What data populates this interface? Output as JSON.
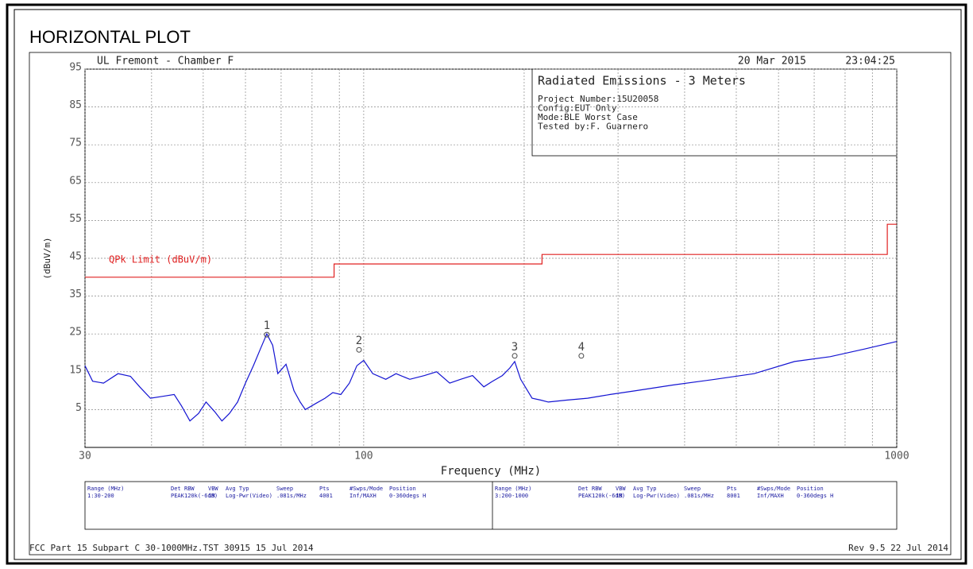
{
  "chart_data": {
    "type": "line",
    "title": "HORIZONTAL PLOT",
    "header_left": "UL Fremont - Chamber F",
    "date": "20 Mar 2015",
    "time": "23:04:25",
    "info_box": {
      "title": "Radiated Emissions - 3 Meters",
      "lines": [
        "Project Number:15U20058",
        "Config:EUT Only",
        "Mode:BLE Worst Case",
        "Tested by:F. Guarnero"
      ]
    },
    "xlabel": "Frequency (MHz)",
    "ylabel": "(dBuV/m)",
    "xscale": "log",
    "xlim": [
      30,
      1000
    ],
    "xticks": [
      30,
      100,
      1000
    ],
    "xgrid": [
      40,
      50,
      60,
      70,
      80,
      90,
      200,
      300,
      400,
      500,
      600,
      700,
      800,
      900
    ],
    "ylim": [
      -5,
      95
    ],
    "yticks": [
      5,
      15,
      25,
      35,
      45,
      55,
      65,
      75,
      85,
      95
    ],
    "grid": true,
    "series": [
      {
        "name": "QPk Limit (dBuV/m)",
        "color": "#e02020",
        "x": [
          30,
          88,
          88,
          216,
          216,
          960,
          960,
          1000
        ],
        "values": [
          40,
          40,
          43.5,
          43.5,
          46,
          46,
          54,
          54
        ]
      },
      {
        "color": "#1414d2",
        "x": [
          30,
          31,
          32.5,
          34.6,
          36.5,
          38,
          39.8,
          42,
          44.1,
          45.5,
          47.2,
          49,
          50.6,
          52.5,
          54.2,
          56,
          58,
          60,
          62.1,
          64,
          65.8,
          67.5,
          69,
          71.5,
          74,
          76,
          77.7,
          81,
          84.6,
          87.5,
          90.6,
          94,
          97.1,
          100,
          104,
          110,
          115,
          122,
          130,
          137,
          145,
          152,
          160,
          168,
          174,
          182,
          188,
          192,
          197,
          207,
          215,
          222,
          240,
          263,
          290,
          324,
          380,
          456,
          540,
          643,
          750,
          870,
          1000
        ],
        "values": [
          16.6,
          12.5,
          12,
          14.5,
          13.8,
          11,
          8,
          8.5,
          9,
          6,
          2,
          4,
          7,
          4.5,
          2,
          4,
          7,
          12,
          16.6,
          21,
          25,
          22,
          14.5,
          17,
          10,
          7,
          5,
          6.5,
          8,
          9.5,
          9,
          12,
          16.6,
          18,
          14.5,
          13,
          14.5,
          13,
          14,
          15,
          12,
          13,
          14,
          11,
          12.4,
          14,
          16,
          17.7,
          13,
          8,
          7.5,
          7,
          7.5,
          8,
          9,
          10,
          11.5,
          13,
          14.5,
          17.7,
          19,
          21,
          23
        ]
      }
    ],
    "markers": [
      {
        "label": "1",
        "x": 65.8,
        "y": 24.8
      },
      {
        "label": "2",
        "x": 98,
        "y": 20.8
      },
      {
        "label": "3",
        "x": 192,
        "y": 19.2
      },
      {
        "label": "4",
        "x": 256,
        "y": 19.2
      }
    ],
    "table": {
      "headers": [
        "Range (MHz)",
        "Det",
        "RBW",
        "VBW",
        "Avg Typ",
        "Sweep",
        "Pts",
        "#Swps/Mode",
        "Position"
      ],
      "rows": [
        [
          "1:30-200",
          "PEAK",
          "120k(-6dB)",
          "1M",
          "Log-Pwr(Video)",
          ".081s/MHz",
          "4001",
          "Inf/MAXH",
          "0-360degs H"
        ],
        [
          "3:200-1000",
          "PEAK",
          "120k(-6dB)",
          "1M",
          "Log-Pwr(Video)",
          ".081s/MHz",
          "8001",
          "Inf/MAXH",
          "0-360degs H"
        ]
      ]
    },
    "footer_left": "FCC Part 15 Subpart C 30-1000MHz.TST 30915 15 Jul 2014",
    "footer_right": "Rev 9.5 22 Jul 2014"
  }
}
